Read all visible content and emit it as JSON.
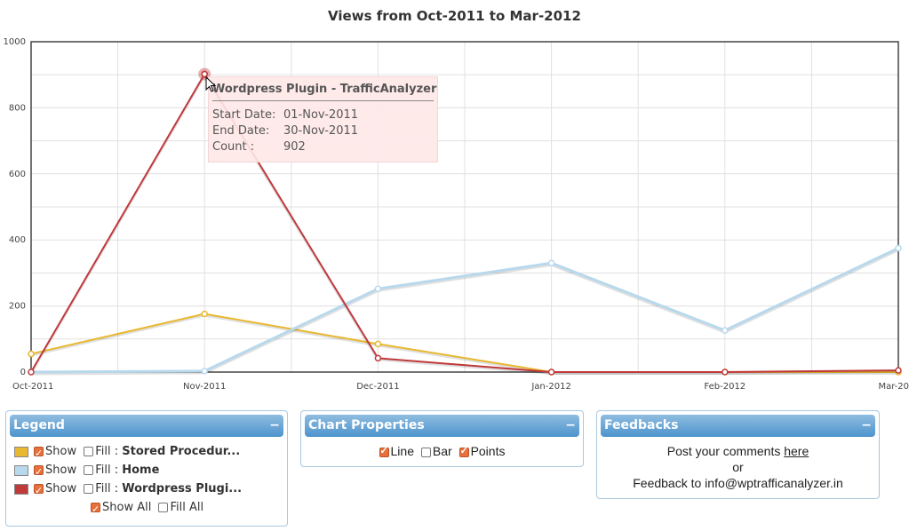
{
  "chart_data": {
    "type": "line",
    "title": "Views from Oct-2011 to Mar-2012",
    "categories": [
      "Oct-2011",
      "Nov-2011",
      "Dec-2011",
      "Jan-2012",
      "Feb-2012",
      "Mar-20"
    ],
    "ylim": [
      0,
      1000
    ],
    "yticks": [
      "0",
      "200",
      "400",
      "600",
      "800",
      "1000"
    ],
    "grid": true,
    "series": [
      {
        "name": "Stored Procedur...",
        "color": "#e8b830",
        "values": [
          55,
          176,
          85,
          0,
          0,
          0
        ]
      },
      {
        "name": "Home",
        "color": "#b8d8ec",
        "values": [
          0,
          3,
          252,
          330,
          126,
          375
        ]
      },
      {
        "name": "Wordpress Plugi...",
        "color": "#c0393b",
        "values": [
          0,
          902,
          42,
          0,
          0,
          5
        ]
      }
    ]
  },
  "tooltip": {
    "title": "Wordpress Plugin - TrafficAnalyzer",
    "start_label": "Start Date:",
    "start_value": "01-Nov-2011",
    "end_label": "End Date:",
    "end_value": "30-Nov-2011",
    "count_label": "Count :",
    "count_value": "902"
  },
  "legend_panel": {
    "title": "Legend",
    "minimize": "−",
    "show_label": "Show",
    "fill_label": "Fill :",
    "items": [
      {
        "name": "Stored Procedur...",
        "color": "#e8b830",
        "show": true,
        "fill": false
      },
      {
        "name": "Home",
        "color": "#b8d8ec",
        "show": true,
        "fill": false
      },
      {
        "name": "Wordpress Plugi...",
        "color": "#c0393b",
        "show": true,
        "fill": false
      }
    ],
    "show_all_label": "Show All",
    "fill_all_label": "Fill All"
  },
  "chart_properties_panel": {
    "title": "Chart Properties",
    "minimize": "−",
    "line_label": "Line",
    "bar_label": "Bar",
    "points_label": "Points"
  },
  "feedbacks_panel": {
    "title": "Feedbacks",
    "minimize": "−",
    "post_text": "Post your comments ",
    "here_link": "here",
    "or_text": "or",
    "feedback_text": "Feedback to info@wptrafficanalyzer.in"
  }
}
